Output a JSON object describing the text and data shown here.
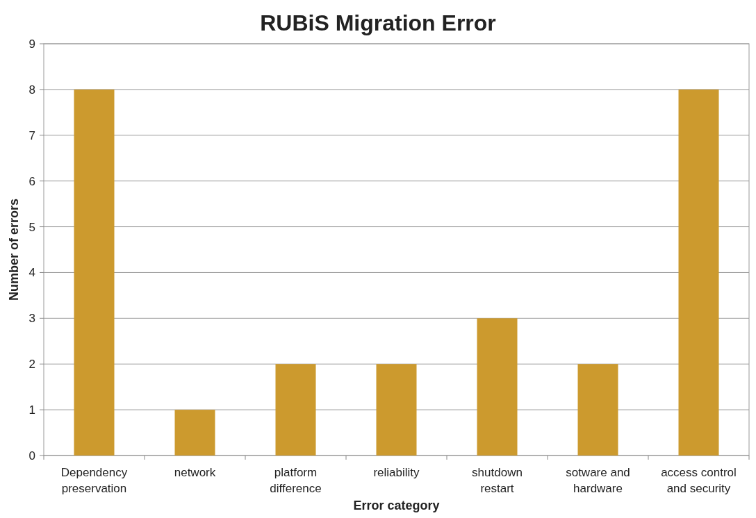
{
  "chart_data": {
    "type": "bar",
    "title": "RUBiS Migration Error",
    "xlabel": "Error category",
    "ylabel": "Number of errors",
    "categories": [
      "Dependency preservation",
      "network",
      "platform difference",
      "reliability",
      "shutdown restart",
      "sotware and hardware",
      "access control and security"
    ],
    "values": [
      8,
      1,
      2,
      2,
      3,
      2,
      8
    ],
    "color": "#cc9a2e",
    "ylim": [
      0,
      9
    ],
    "yticks": [
      0,
      1,
      2,
      3,
      4,
      5,
      6,
      7,
      8,
      9
    ],
    "grid": "y"
  }
}
